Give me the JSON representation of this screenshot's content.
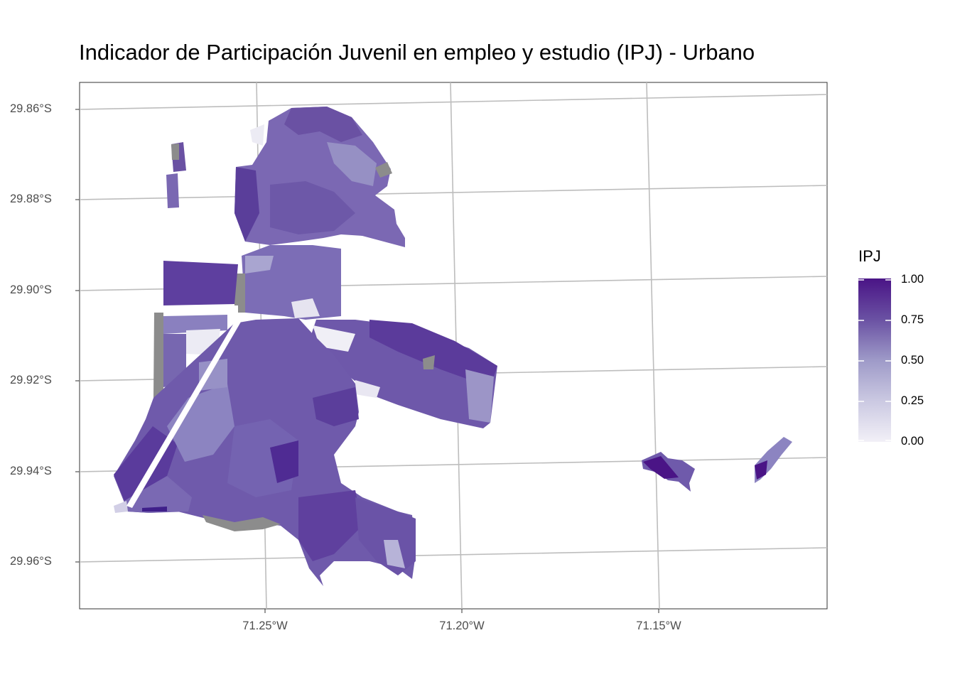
{
  "title": "Indicador de Participación Juvenil en empleo y estudio (IPJ) - Urbano",
  "axes": {
    "lat_labels": [
      "29.86°S",
      "29.88°S",
      "29.90°S",
      "29.92°S",
      "29.94°S",
      "29.96°S"
    ],
    "lon_labels": [
      "71.25°W",
      "71.20°W",
      "71.15°W"
    ]
  },
  "legend": {
    "title": "IPJ",
    "ticks": [
      "1.00",
      "0.75",
      "0.50",
      "0.25",
      "0.00"
    ],
    "range": [
      0,
      1
    ],
    "colors": {
      "low": "#f2f0f7",
      "mid": "#9e9ac8",
      "high": "#4a1486",
      "na": "#8c8c8c"
    }
  },
  "map": {
    "regions": [
      "main-urban-area",
      "northwest-strip",
      "east-patch-1",
      "east-patch-2"
    ],
    "style": "choropleth"
  }
}
